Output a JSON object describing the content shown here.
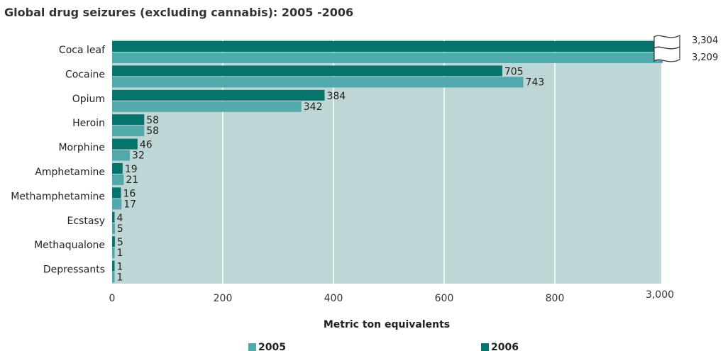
{
  "top_fragment": "",
  "chart_data": {
    "type": "bar",
    "orientation": "horizontal",
    "title": "Global drug seizures (excluding cannabis): 2005 -2006",
    "xlabel": "Metric ton equivalents",
    "ylabel": "",
    "categories": [
      "Coca leaf",
      "Cocaine",
      "Opium",
      "Heroin",
      "Morphine",
      "Amphetamine",
      "Methamphetamine",
      "Ecstasy",
      "Methaqualone",
      "Depressants"
    ],
    "series": [
      {
        "name": "2006",
        "values": [
          3304,
          705,
          384,
          58,
          46,
          19,
          16,
          4,
          5,
          1
        ],
        "labels": [
          "3,304",
          "705",
          "384",
          "58",
          "46",
          "19",
          "16",
          "4",
          "5",
          "1"
        ]
      },
      {
        "name": "2005",
        "values": [
          3209,
          743,
          342,
          58,
          32,
          21,
          17,
          5,
          1,
          1
        ],
        "labels": [
          "3,209",
          "743",
          "342",
          "58",
          "32",
          "21",
          "17",
          "5",
          "1",
          "1"
        ]
      }
    ],
    "xlim": [
      0,
      3000
    ],
    "axis_break": "between 800 and 3,000",
    "xticks": [
      "0",
      "200",
      "400",
      "600",
      "800",
      "3,000"
    ],
    "grid": "vertical",
    "legend_position": "bottom",
    "colors": {
      "2005": "#52a9ac",
      "2006": "#06736d",
      "plot_background": "#bed7d6",
      "grid": "#ffffff"
    }
  }
}
